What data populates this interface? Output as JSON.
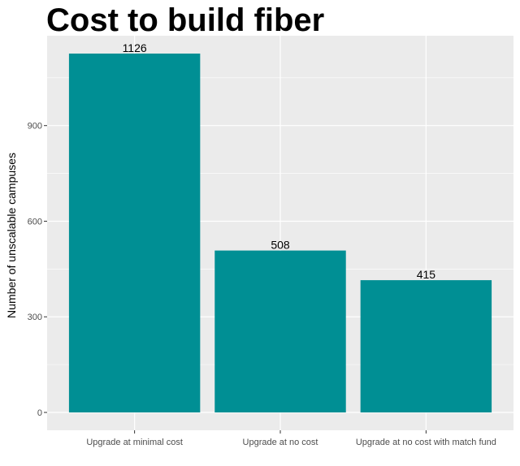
{
  "chart_data": {
    "type": "bar",
    "title": "Cost to build fiber",
    "ylabel": "Number of unscalable campuses",
    "xlabel": "",
    "categories": [
      "Upgrade at minimal cost",
      "Upgrade at no cost",
      "Upgrade at no cost with match fund"
    ],
    "values": [
      1126,
      508,
      415
    ],
    "data_labels": [
      "1126",
      "508",
      "415"
    ],
    "yticks": [
      0,
      300,
      600,
      900
    ],
    "ytick_labels": [
      "0",
      "300",
      "600",
      "900"
    ],
    "ylim": [
      -56,
      1182
    ],
    "grid": true,
    "legend": "none",
    "colors": {
      "bar": "#008f94",
      "panel": "#ebebeb",
      "grid_major": "#ffffff",
      "axis_text": "#4d4d4d"
    }
  }
}
